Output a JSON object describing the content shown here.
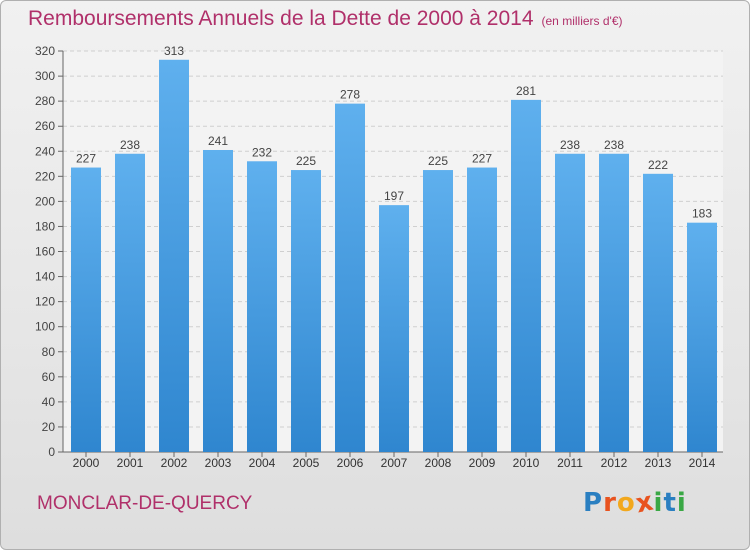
{
  "chart_data": {
    "type": "bar",
    "title": "Remboursements Annuels de la Dette de 2000 à 2014",
    "unit": "(en milliers d'€)",
    "categories": [
      "2000",
      "2001",
      "2002",
      "2003",
      "2004",
      "2005",
      "2006",
      "2007",
      "2008",
      "2009",
      "2010",
      "2011",
      "2012",
      "2013",
      "2014"
    ],
    "values": [
      227,
      238,
      313,
      241,
      232,
      225,
      278,
      197,
      225,
      227,
      281,
      238,
      238,
      222,
      183
    ],
    "ylim": [
      0,
      320
    ],
    "yticks": [
      0,
      20,
      40,
      60,
      80,
      100,
      120,
      140,
      160,
      180,
      200,
      220,
      240,
      260,
      280,
      300,
      320
    ],
    "grid": true,
    "bar_color": "#4a9de0"
  },
  "footer": {
    "commune": "MONCLAR-DE-QUERCY",
    "logo_letters": [
      "P",
      "r",
      "o",
      "x",
      "i",
      "t",
      "i"
    ],
    "logo_colors": [
      "#2a7fc1",
      "#e8531f",
      "#f2a81d",
      "#e8531f",
      "#3aa845",
      "#2a7fc1",
      "#3aa845"
    ]
  }
}
